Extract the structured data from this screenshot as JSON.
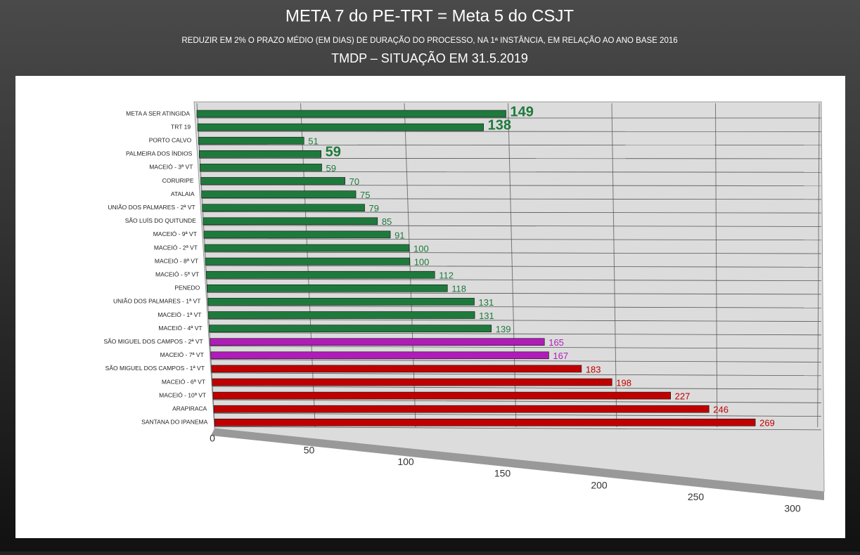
{
  "chart_data": {
    "type": "bar",
    "orientation": "horizontal",
    "title": "META 7 do PE-TRT = Meta 5 do CSJT",
    "subtitle": "REDUZIR EM 2% O PRAZO MÉDIO (EM DIAS) DE DURAÇÃO DO PROCESSO, NA 1ª INSTÂNCIA, EM RELAÇÃO AO ANO BASE 2016",
    "subtitle2": "TMDP – SITUAÇÃO EM 31.5.2019",
    "categories": [
      "META A SER ATINGIDA",
      "TRT 19",
      "PORTO CALVO",
      "PALMEIRA DOS ÍNDIOS",
      "MACEIÓ - 3ª VT",
      "CORURIPE",
      "ATALAIA",
      "UNIÃO DOS PALMARES - 2ª VT",
      "SÃO LUÍS DO QUITUNDE",
      "MACEIÓ - 9ª VT",
      "MACEIÓ - 2ª VT",
      "MACEIÓ - 8ª VT",
      "MACEIÓ - 5ª VT",
      "PENEDO",
      "UNIÃO DOS PALMARES - 1ª VT",
      "MACEIÓ - 1ª VT",
      "MACEIÓ - 4ª VT",
      "SÃO MIGUEL DOS CAMPOS - 2ª VT",
      "MACEIÓ - 7ª VT",
      "SÃO MIGUEL DOS CAMPOS - 1ª VT",
      "MACEIÓ - 6ª VT",
      "MACEIÓ - 10ª VT",
      "ARAPIRACA",
      "SANTANA DO IPANEMA"
    ],
    "values": [
      149,
      138,
      51,
      59,
      59,
      70,
      75,
      79,
      85,
      91,
      100,
      100,
      112,
      118,
      131,
      131,
      139,
      165,
      167,
      183,
      198,
      227,
      246,
      269
    ],
    "colors": [
      "#1e7a3c",
      "#1e7a3c",
      "#1e7a3c",
      "#1e7a3c",
      "#1e7a3c",
      "#1e7a3c",
      "#1e7a3c",
      "#1e7a3c",
      "#1e7a3c",
      "#1e7a3c",
      "#1e7a3c",
      "#1e7a3c",
      "#1e7a3c",
      "#1e7a3c",
      "#1e7a3c",
      "#1e7a3c",
      "#1e7a3c",
      "#b01cb8",
      "#b01cb8",
      "#c00000",
      "#c00000",
      "#c00000",
      "#c00000",
      "#c00000"
    ],
    "xlim": [
      0,
      300
    ],
    "xticks": [
      0,
      50,
      100,
      150,
      200,
      250,
      300
    ],
    "grid": true
  }
}
